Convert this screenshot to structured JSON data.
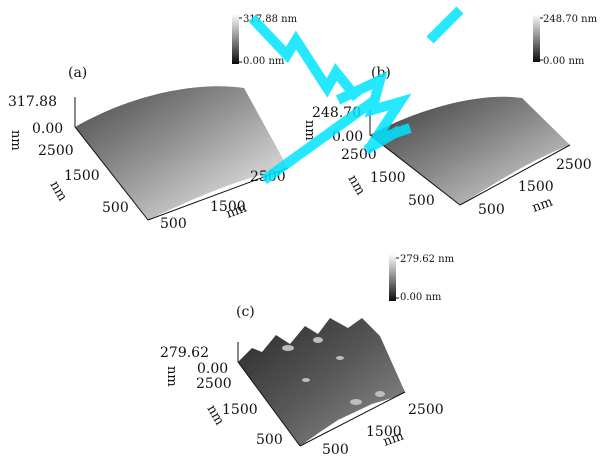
{
  "panels": [
    {
      "label": "(a)",
      "colorbar": {
        "max": "317.88 nm",
        "min": "0.00 nm"
      },
      "z_ticks": [
        "317.88",
        "0.00"
      ],
      "z_unit": "nm",
      "y_ticks": [
        "2500",
        "1500",
        "500"
      ],
      "y_unit": "nm",
      "x_ticks": [
        "500",
        "1500",
        "2500"
      ],
      "x_unit": "nm"
    },
    {
      "label": "(b)",
      "colorbar": {
        "max": "248.70 nm",
        "min": "0.00 nm"
      },
      "z_ticks": [
        "248.70",
        "0.00"
      ],
      "z_unit": "nm",
      "y_ticks": [
        "2500",
        "1500",
        "500"
      ],
      "y_unit": "nm",
      "x_ticks": [
        "500",
        "1500",
        "2500"
      ],
      "x_unit": "nm"
    },
    {
      "label": "(c)",
      "colorbar": {
        "max": "279.62 nm",
        "min": "0.00 nm"
      },
      "z_ticks": [
        "279.62",
        "0.00"
      ],
      "z_unit": "nm",
      "y_ticks": [
        "2500",
        "1500",
        "500"
      ],
      "y_unit": "nm",
      "x_ticks": [
        "500",
        "1500",
        "2500"
      ],
      "x_unit": "nm"
    }
  ],
  "watermark": {
    "color": "#00e5ff"
  }
}
